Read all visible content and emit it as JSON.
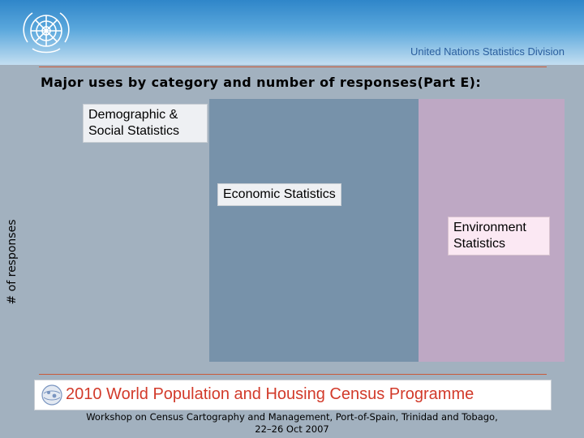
{
  "header": {
    "division": "United Nations Statistics Division",
    "logo_icon": "un-emblem-icon"
  },
  "title": "Major uses by category and number of responses(Part E):",
  "chart_data": {
    "type": "bar",
    "categories": [
      "Demographic & Social Statistics",
      "Economic Statistics",
      "Environment Statistics"
    ],
    "ylabel": "# of responses",
    "xlabel": "",
    "colors": [
      "#a2b1bf",
      "#7792aa",
      "#bea8c4"
    ]
  },
  "footer": {
    "banner": "2010 World Population and Housing Census Programme",
    "workshop_line1": "Workshop on Census Cartography and Management, Port-of-Spain, Trinidad and Tobago,",
    "workshop_line2": "22–26 Oct 2007"
  }
}
